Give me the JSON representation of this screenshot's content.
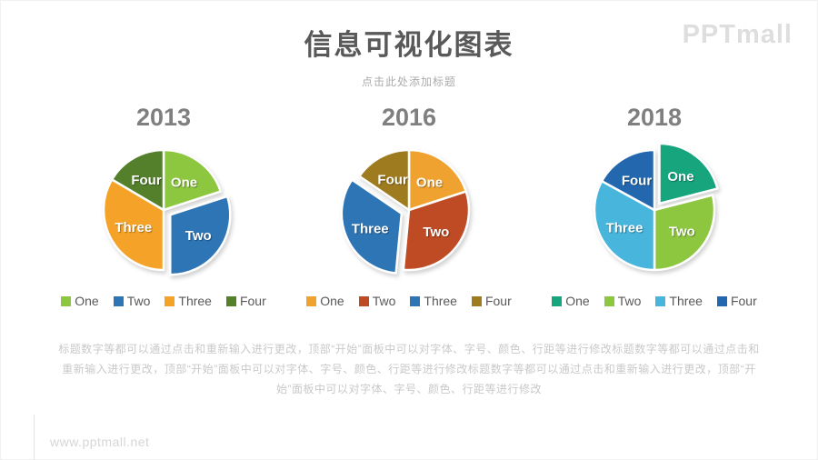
{
  "page": {
    "title": "信息可视化图表",
    "subtitle": "点击此处添加标题",
    "logo": "PPTmall",
    "watermark": "www.pptmall.net",
    "description": "标题数字等都可以通过点击和重新输入进行更改，顶部“开始”面板中可以对字体、字号、颜色、行距等进行修改标题数字等都可以通过点击和重新输入进行更改，顶部“开始”面板中可以对字体、字号、颜色、行距等进行修改标题数字等都可以通过点击和重新输入进行更改，顶部“开始”面板中可以对字体、字号、颜色、行距等进行修改"
  },
  "colors": {
    "title_gray": "#595959",
    "year_gray": "#7f7f7f",
    "subtitle_gray": "#ababab",
    "paragraph_gray": "#c9c9c9",
    "logo_gray": "#dedede"
  },
  "chart_data": [
    {
      "type": "pie",
      "title": "2013",
      "labels": [
        "One",
        "Two",
        "Three",
        "Four"
      ],
      "values": [
        20,
        30,
        33.5,
        16.5
      ],
      "colors": [
        "#8dc63f",
        "#2e75b6",
        "#f5a328",
        "#54802b"
      ],
      "exploded_slice": "Two",
      "start_angle_deg": 0,
      "legend_position": "bottom"
    },
    {
      "type": "pie",
      "title": "2016",
      "labels": [
        "One",
        "Two",
        "Three",
        "Four"
      ],
      "values": [
        20,
        31.5,
        33,
        15.5
      ],
      "colors": [
        "#f0a230",
        "#be4b24",
        "#2e75b6",
        "#9e7b1e"
      ],
      "exploded_slice": "Three",
      "start_angle_deg": 0,
      "legend_position": "bottom"
    },
    {
      "type": "pie",
      "title": "2018",
      "labels": [
        "One",
        "Two",
        "Three",
        "Four"
      ],
      "values": [
        21,
        29,
        33,
        17
      ],
      "colors": [
        "#17a57e",
        "#8dc63f",
        "#47b5dc",
        "#2368ae"
      ],
      "exploded_slice": "One",
      "start_angle_deg": 0,
      "legend_position": "bottom"
    }
  ]
}
